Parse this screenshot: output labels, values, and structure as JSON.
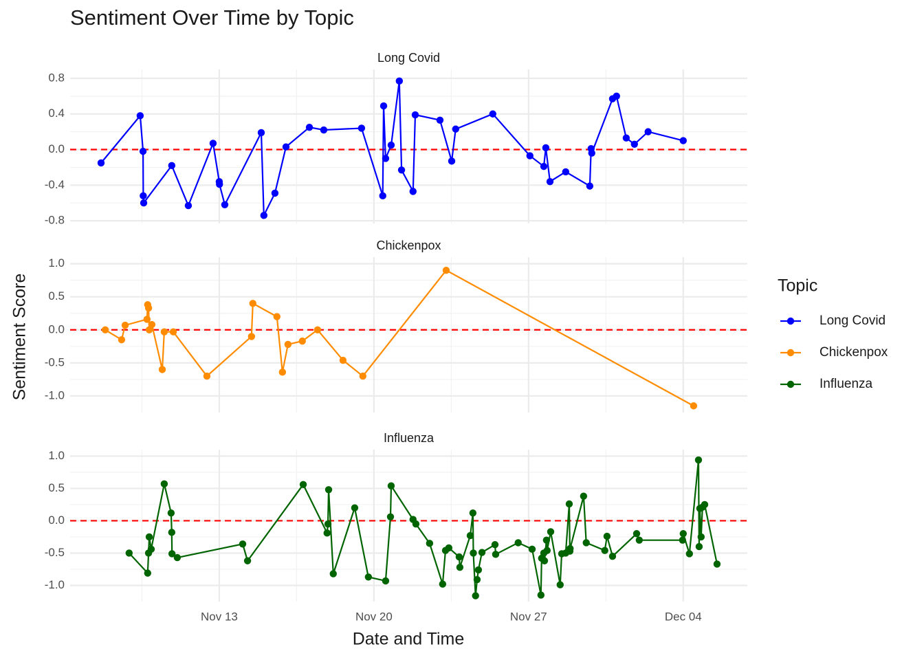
{
  "chart_data": {
    "type": "line",
    "title": "Sentiment Over Time by Topic",
    "x_label": "Date and Time",
    "y_label": "Sentiment Score",
    "legend_title": "Topic",
    "legend_position": "right",
    "grid": true,
    "hline": 0,
    "hline_color": "red",
    "xlim": [
      6.25,
      36.9
    ],
    "xticks": [
      {
        "value": 13,
        "label": "Nov 13"
      },
      {
        "value": 20,
        "label": "Nov 20"
      },
      {
        "value": 27,
        "label": "Nov 27"
      },
      {
        "value": 34,
        "label": "Dec 04"
      }
    ],
    "series": [
      {
        "name": "Long Covid",
        "color": "blue",
        "ylim": [
          -0.83,
          0.9
        ],
        "yticks": [
          0.8,
          0.4,
          {
            "value": 0,
            "label": "0.0"
          },
          -0.4,
          -0.8
        ],
        "x": [
          7.65,
          9.42,
          9.55,
          9.56,
          9.58,
          10.85,
          11.6,
          12.72,
          13.0,
          13.01,
          13.25,
          14.9,
          15.02,
          15.52,
          16.02,
          17.08,
          17.73,
          19.44,
          20.4,
          20.44,
          20.53,
          20.78,
          21.15,
          21.25,
          21.77,
          21.87,
          22.99,
          23.52,
          23.7,
          25.38,
          27.06,
          27.69,
          27.78,
          27.97,
          28.68,
          29.77,
          29.83,
          29.86,
          30.8,
          30.98,
          31.42,
          31.79,
          32.41,
          34.0
        ],
        "values": [
          -0.15,
          0.38,
          -0.02,
          -0.52,
          -0.6,
          -0.18,
          -0.63,
          0.07,
          -0.36,
          -0.39,
          -0.62,
          0.19,
          -0.74,
          -0.49,
          0.03,
          0.25,
          0.22,
          0.24,
          -0.52,
          0.49,
          -0.1,
          0.05,
          0.77,
          -0.23,
          -0.47,
          0.39,
          0.33,
          -0.13,
          0.23,
          0.4,
          -0.07,
          -0.19,
          0.02,
          -0.36,
          -0.25,
          -0.41,
          0.01,
          -0.04,
          0.57,
          0.6,
          0.13,
          0.06,
          0.2,
          0.1
        ]
      },
      {
        "name": "Chickenpox",
        "color": "darkorange",
        "ylim": [
          -1.25,
          1.1
        ],
        "yticks": [
          {
            "value": 1,
            "label": "1.0"
          },
          0.5,
          {
            "value": 0,
            "label": "0.0"
          },
          -0.5,
          {
            "value": -1,
            "label": "-1.0"
          }
        ],
        "x": [
          7.84,
          8.58,
          8.74,
          9.73,
          9.76,
          9.8,
          9.83,
          9.95,
          10.42,
          10.51,
          10.92,
          12.44,
          14.46,
          14.52,
          15.61,
          15.86,
          16.11,
          16.76,
          17.45,
          18.6,
          19.5,
          23.27,
          34.47
        ],
        "values": [
          0.0,
          -0.15,
          0.07,
          0.16,
          0.38,
          0.33,
          0.0,
          0.08,
          -0.6,
          -0.03,
          -0.03,
          -0.7,
          -0.1,
          0.4,
          0.2,
          -0.64,
          -0.22,
          -0.17,
          0.0,
          -0.46,
          -0.7,
          0.9,
          -1.15
        ]
      },
      {
        "name": "Influenza",
        "color": "darkgreen",
        "ylim": [
          -1.25,
          1.1
        ],
        "yticks": [
          {
            "value": 1,
            "label": "1.0"
          },
          0.5,
          {
            "value": 0,
            "label": "0.0"
          },
          -0.5,
          {
            "value": -1,
            "label": "-1.0"
          }
        ],
        "x": [
          8.92,
          9.76,
          9.8,
          9.83,
          9.92,
          10.51,
          10.82,
          10.85,
          10.86,
          11.1,
          14.06,
          14.28,
          16.8,
          17.88,
          17.92,
          17.95,
          18.16,
          19.13,
          19.75,
          20.53,
          20.75,
          20.78,
          21.77,
          21.9,
          22.52,
          23.11,
          23.24,
          23.39,
          23.86,
          23.89,
          24.36,
          24.48,
          24.5,
          24.6,
          24.67,
          24.73,
          24.89,
          25.48,
          25.51,
          26.53,
          27.16,
          27.56,
          27.59,
          27.69,
          27.72,
          27.81,
          27.84,
          28.0,
          28.43,
          28.5,
          28.68,
          28.84,
          28.87,
          28.88,
          29.49,
          29.61,
          30.45,
          30.55,
          30.8,
          31.89,
          32.01,
          33.97,
          34.0,
          34.28,
          34.69,
          34.72,
          34.75,
          34.81,
          34.87,
          34.97,
          35.53
        ],
        "values": [
          -0.5,
          -0.81,
          -0.5,
          -0.25,
          -0.44,
          0.57,
          0.12,
          -0.18,
          -0.51,
          -0.57,
          -0.36,
          -0.62,
          0.56,
          -0.19,
          -0.05,
          0.48,
          -0.82,
          0.2,
          -0.87,
          -0.93,
          0.06,
          0.54,
          0.02,
          -0.05,
          -0.35,
          -0.98,
          -0.46,
          -0.42,
          -0.56,
          -0.72,
          -0.23,
          0.12,
          -0.5,
          -1.16,
          -0.91,
          -0.76,
          -0.49,
          -0.37,
          -0.52,
          -0.34,
          -0.44,
          -1.15,
          -0.58,
          -0.5,
          -0.62,
          -0.3,
          -0.46,
          -0.17,
          -0.99,
          -0.51,
          -0.5,
          0.26,
          -0.47,
          -0.43,
          0.38,
          -0.34,
          -0.46,
          -0.24,
          -0.55,
          -0.2,
          -0.3,
          -0.3,
          -0.2,
          -0.51,
          0.94,
          -0.4,
          0.19,
          -0.25,
          0.21,
          0.25,
          -0.67
        ]
      }
    ]
  }
}
